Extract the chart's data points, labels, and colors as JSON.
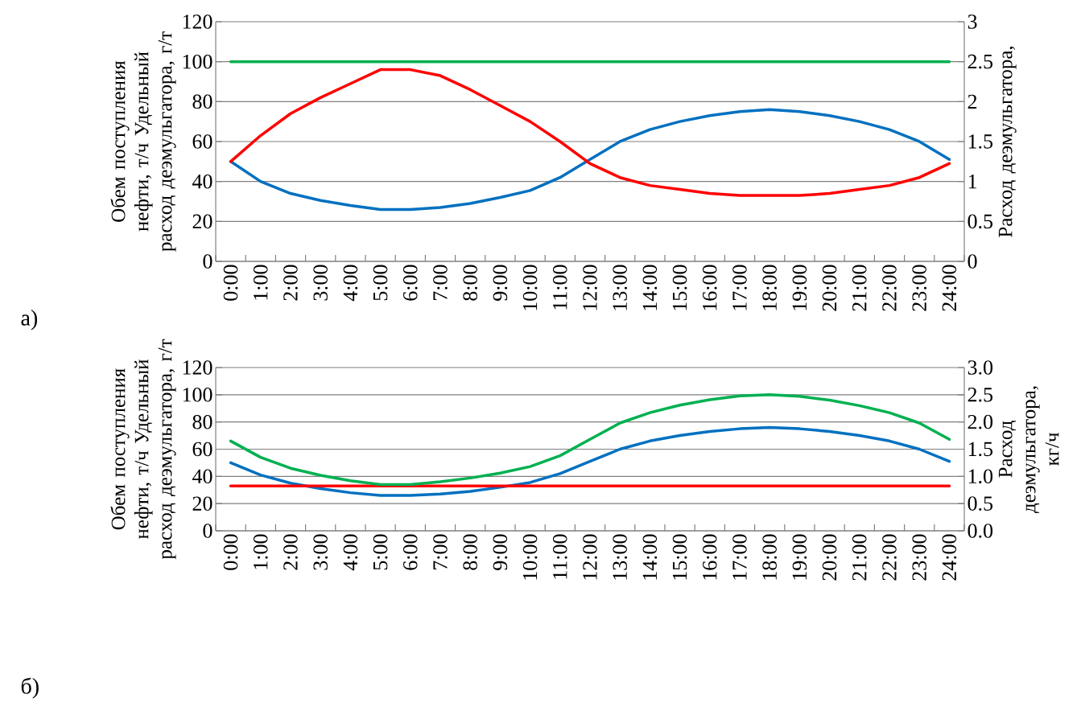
{
  "chart_data": [
    {
      "type": "line",
      "categories": [
        "0:00",
        "1:00",
        "2:00",
        "3:00",
        "4:00",
        "5:00",
        "6:00",
        "7:00",
        "8:00",
        "9:00",
        "10:00",
        "11:00",
        "12:00",
        "13:00",
        "14:00",
        "15:00",
        "16:00",
        "17:00",
        "18:00",
        "19:00",
        "20:00",
        "21:00",
        "22:00",
        "23:00",
        "24:00"
      ],
      "series": [
        {
          "color": "#0070c0",
          "values": [
            50,
            40,
            34,
            30.5,
            28,
            26,
            26,
            27,
            29,
            32,
            35.5,
            42,
            51,
            60,
            66,
            70,
            73,
            75,
            76,
            75,
            73,
            70,
            66,
            60,
            51
          ]
        },
        {
          "color": "#ff0000",
          "values": [
            50,
            63,
            74,
            82,
            89,
            96,
            96,
            93,
            86,
            78,
            70,
            60,
            49,
            42,
            38,
            36,
            34,
            33,
            33,
            33,
            34,
            36,
            38,
            42,
            49
          ]
        },
        {
          "color": "#00b050",
          "axis": "y2",
          "values": [
            2.5,
            2.5,
            2.5,
            2.5,
            2.5,
            2.5,
            2.5,
            2.5,
            2.5,
            2.5,
            2.5,
            2.5,
            2.5,
            2.5,
            2.5,
            2.5,
            2.5,
            2.5,
            2.5,
            2.5,
            2.5,
            2.5,
            2.5,
            2.5,
            2.5
          ]
        }
      ],
      "ylim": [
        0,
        120
      ],
      "yticks": [
        0,
        20,
        40,
        60,
        80,
        100,
        120
      ],
      "y2lim": [
        0,
        3
      ],
      "y2ticks": [
        0,
        0.5,
        1,
        1.5,
        2,
        2.5,
        3
      ],
      "ylabel": "Обем поступления нефти, т/ч Удельный расход деэмульгатора, г/т",
      "y2label": "Расход деэмульгатора,",
      "grid": "y",
      "annotations": [
        "а)"
      ]
    },
    {
      "type": "line",
      "categories": [
        "0:00",
        "1:00",
        "2:00",
        "3:00",
        "4:00",
        "5:00",
        "6:00",
        "7:00",
        "8:00",
        "9:00",
        "10:00",
        "11:00",
        "12:00",
        "13:00",
        "14:00",
        "15:00",
        "16:00",
        "17:00",
        "18:00",
        "19:00",
        "20:00",
        "21:00",
        "22:00",
        "23:00",
        "24:00"
      ],
      "series": [
        {
          "color": "#0070c0",
          "values": [
            50,
            41,
            35,
            31,
            28,
            26,
            26,
            27,
            29,
            32,
            35.5,
            42,
            51,
            60,
            66,
            70,
            73,
            75,
            76,
            75,
            73,
            70,
            66,
            60,
            51
          ]
        },
        {
          "color": "#ff0000",
          "values": [
            33,
            33,
            33,
            33,
            33,
            33,
            33,
            33,
            33,
            33,
            33,
            33,
            33,
            33,
            33,
            33,
            33,
            33,
            33,
            33,
            33,
            33,
            33,
            33,
            33
          ]
        },
        {
          "color": "#00b050",
          "axis": "y2",
          "values": [
            1.65,
            1.35,
            1.15,
            1.02,
            0.92,
            0.85,
            0.85,
            0.9,
            0.97,
            1.06,
            1.18,
            1.38,
            1.68,
            1.98,
            2.17,
            2.31,
            2.41,
            2.48,
            2.5,
            2.47,
            2.4,
            2.3,
            2.17,
            1.98,
            1.68
          ]
        }
      ],
      "ylim": [
        0,
        120
      ],
      "yticks": [
        0,
        20,
        40,
        60,
        80,
        100,
        120
      ],
      "y2lim": [
        0,
        3
      ],
      "y2ticks": [
        {
          "value": 0,
          "label": "0.0"
        },
        {
          "value": 0.5,
          "label": "0.5"
        },
        {
          "value": 1,
          "label": "1.0"
        },
        {
          "value": 1.5,
          "label": "1.5"
        },
        {
          "value": 2,
          "label": "2.0"
        },
        {
          "value": 2.5,
          "label": "2.5"
        },
        {
          "value": 3,
          "label": "3.0"
        }
      ],
      "ylabel": "Обем поступления нефти, т/ч Удельный расход деэмульгатора, г/т",
      "y2label": "Расход деэмульгатора, кг/ч",
      "grid": "y",
      "annotations": [
        "б)"
      ]
    }
  ]
}
